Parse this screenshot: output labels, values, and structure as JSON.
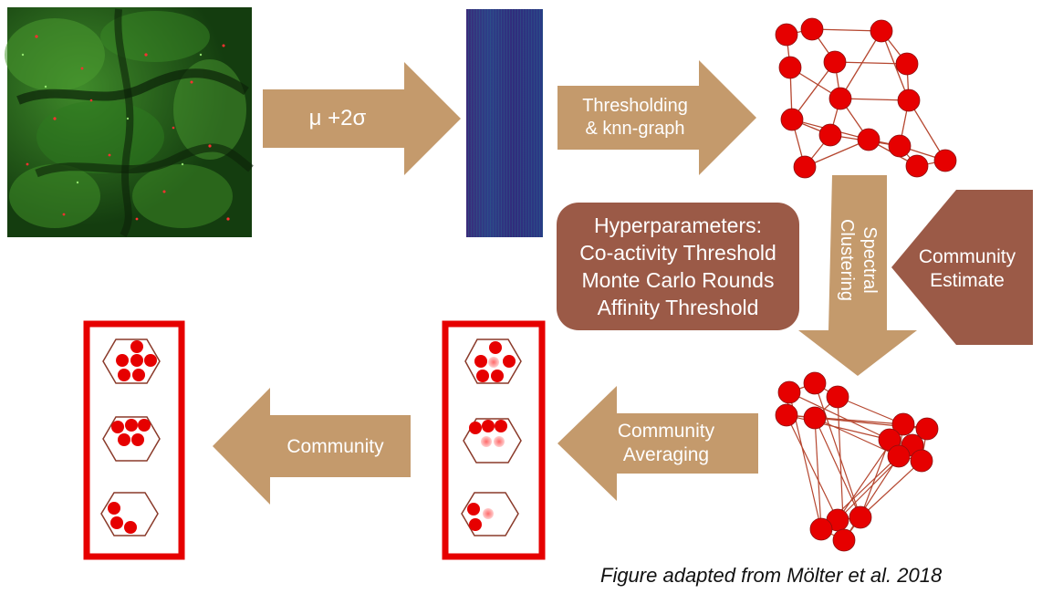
{
  "arrows": {
    "mu_sigma": "μ +2σ",
    "thresholding_line1": "Thresholding",
    "thresholding_line2": "& knn-graph",
    "spectral_line1": "Spectral",
    "spectral_line2": "Clustering",
    "community_estimate_line1": "Community",
    "community_estimate_line2": "Estimate",
    "community_averaging_line1": "Community",
    "community_averaging_line2": "Averaging",
    "community": "Community"
  },
  "hyperparameters": {
    "title": "Hyperparameters:",
    "items": [
      "Co-activity Threshold",
      "Monte Carlo Rounds",
      "Affinity Threshold"
    ]
  },
  "caption": "Figure adapted from Mölter et al. 2018",
  "colors": {
    "arrow_fill": "#c49a6c",
    "arrow_dark": "#9b5a47",
    "node": "#e60000",
    "edge": "#b5462f",
    "frame": "#e60000",
    "heatmap": "#3b2a7a"
  }
}
